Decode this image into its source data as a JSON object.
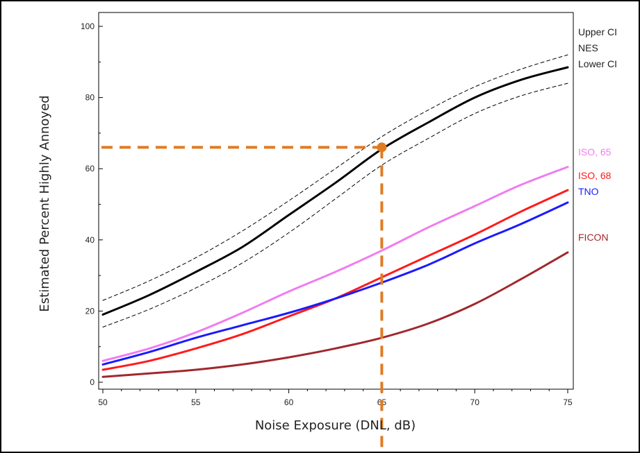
{
  "chart_data": {
    "type": "line",
    "title": "",
    "xlabel": "Noise Exposure (DNL, dB)",
    "ylabel": "Estimated Percent Highly Annoyed",
    "xlim": [
      50,
      75
    ],
    "ylim": [
      0,
      100
    ],
    "x_ticks": [
      50,
      55,
      60,
      65,
      70,
      75
    ],
    "y_ticks": [
      0,
      20,
      40,
      60,
      80,
      100
    ],
    "grid": false,
    "legend": "right, labels at line ends",
    "x": [
      50,
      52.5,
      55,
      57.5,
      60,
      62.5,
      65,
      67.5,
      70,
      72.5,
      75
    ],
    "series": [
      {
        "name": "Upper CI",
        "color": "#000000",
        "style": "dashed",
        "values": [
          23,
          28.5,
          35,
          42.5,
          51,
          60,
          69,
          76.5,
          83,
          88,
          92
        ]
      },
      {
        "name": "NES",
        "color": "#000000",
        "style": "solid",
        "values": [
          19,
          24.5,
          31,
          38,
          47,
          56,
          65.5,
          73,
          80,
          85,
          88.5
        ]
      },
      {
        "name": "Lower CI",
        "color": "#000000",
        "style": "dashed",
        "values": [
          15.5,
          20.5,
          26.5,
          33.5,
          42,
          51.5,
          61,
          68.5,
          75.5,
          80.5,
          84
        ]
      },
      {
        "name": "ISO, 65",
        "color": "#f07cf0",
        "style": "solid",
        "values": [
          6,
          9.5,
          14,
          19.5,
          25.5,
          31,
          37,
          43.5,
          49.5,
          55.5,
          60.5
        ]
      },
      {
        "name": "ISO, 68",
        "color": "#ff1a1a",
        "style": "solid",
        "values": [
          3.5,
          6,
          9.5,
          13.5,
          18.5,
          23.5,
          29.5,
          35.5,
          41.5,
          48,
          54
        ]
      },
      {
        "name": "TNO",
        "color": "#1a1aff",
        "style": "solid",
        "values": [
          5,
          8.5,
          12.5,
          16,
          19.5,
          23.5,
          28,
          33,
          39,
          44.5,
          50.5
        ]
      },
      {
        "name": "FICON",
        "color": "#a0282d",
        "style": "solid",
        "values": [
          1.5,
          2.5,
          3.5,
          5,
          7,
          9.5,
          12.5,
          16.5,
          22,
          29,
          36.5
        ]
      }
    ],
    "annotation": {
      "color": "#e07b24",
      "x": 65,
      "y": 66,
      "style": "dashed reference lines from point to both axes"
    }
  }
}
